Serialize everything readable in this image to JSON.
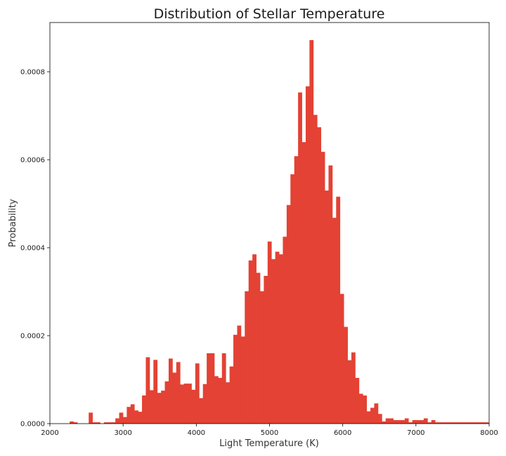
{
  "chart_data": {
    "type": "bar",
    "title": "Distribution of Stellar Temperature",
    "xlabel": "Light Temperature (K)",
    "ylabel": "Probability",
    "xlim": [
      2000,
      8000
    ],
    "ylim": [
      0,
      0.000912
    ],
    "grid": false,
    "bar_color": "#e34234",
    "bin_width": 52,
    "x_ticks": [
      2000,
      3000,
      4000,
      5000,
      6000,
      7000,
      8000
    ],
    "y_ticks": [
      0.0,
      0.0002,
      0.0004,
      0.0006,
      0.0008
    ],
    "y_tick_labels": [
      "0.0000",
      "0.0002",
      "0.0004",
      "0.0006",
      "0.0008"
    ],
    "series": [
      {
        "bin_starts": [
          2270,
          2322,
          2374,
          2426,
          2478,
          2530,
          2582,
          2634,
          2686,
          2738,
          2790,
          2842,
          2894,
          2946,
          2998,
          3050,
          3102,
          3154,
          3206,
          3258,
          3310,
          3362,
          3414,
          3466,
          3518,
          3570,
          3622,
          3674,
          3726,
          3778,
          3830,
          3882,
          3934,
          3986,
          4038,
          4090,
          4142,
          4194,
          4246,
          4298,
          4350,
          4402,
          4454,
          4506,
          4558,
          4610,
          4662,
          4714,
          4766,
          4818,
          4870,
          4922,
          4974,
          5026,
          5078,
          5130,
          5182,
          5234,
          5286,
          5338,
          5390,
          5442,
          5494,
          5546,
          5598,
          5650,
          5702,
          5754,
          5806,
          5858,
          5910,
          5962,
          6014,
          6066,
          6118,
          6170,
          6222,
          6274,
          6326,
          6378,
          6430,
          6482,
          6534,
          6586,
          6638,
          6690,
          6742,
          6794,
          6846,
          6898,
          6950,
          7002,
          7054,
          7106,
          7158,
          7210,
          7262,
          7314,
          7366,
          7418,
          7470,
          7522,
          7574,
          7626,
          7678,
          7730,
          7782,
          7834,
          7886,
          7938
        ],
        "values": [
          5e-06,
          3e-06,
          0.0,
          0.0,
          0.0,
          2.5e-05,
          3e-06,
          3e-06,
          0.0,
          3e-06,
          3e-06,
          3e-06,
          1.2e-05,
          2.5e-05,
          1.5e-05,
          3.8e-05,
          4.4e-05,
          3e-05,
          2.7e-05,
          6.4e-05,
          0.000151,
          7.6e-05,
          0.000145,
          7e-05,
          7.5e-05,
          9.6e-05,
          0.000148,
          0.000116,
          0.00014,
          8.9e-05,
          9.1e-05,
          9.1e-05,
          7.7e-05,
          0.000137,
          5.8e-05,
          9e-05,
          0.00016,
          0.00016,
          0.000108,
          0.000104,
          0.00016,
          9.4e-05,
          0.00013,
          0.000202,
          0.000223,
          0.000198,
          0.000301,
          0.000371,
          0.000385,
          0.000343,
          0.000301,
          0.000336,
          0.000414,
          0.000374,
          0.000391,
          0.000385,
          0.000425,
          0.000497,
          0.000567,
          0.000608,
          0.000753,
          0.00064,
          0.000767,
          0.000872,
          0.000702,
          0.000674,
          0.000618,
          0.00053,
          0.000587,
          0.000468,
          0.000516,
          0.000295,
          0.00022,
          0.000144,
          0.000162,
          0.000104,
          6.8e-05,
          6.4e-05,
          2.8e-05,
          3.6e-05,
          4.6e-05,
          2.2e-05,
          5e-06,
          1.2e-05,
          1.2e-05,
          8e-06,
          8e-06,
          8e-06,
          1.2e-05,
          3e-06,
          8e-06,
          8e-06,
          8e-06,
          1.2e-05,
          3e-06,
          8e-06,
          3e-06,
          3e-06,
          3e-06,
          3e-06,
          3e-06,
          3e-06,
          3e-06,
          3e-06,
          3e-06,
          3e-06,
          3e-06,
          3e-06,
          3e-06,
          3e-06
        ]
      }
    ]
  }
}
